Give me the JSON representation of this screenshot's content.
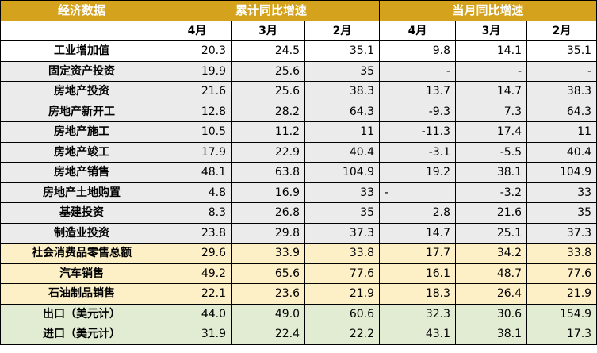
{
  "table": {
    "header": {
      "title": "经济数据",
      "group_cumulative": "累计同比增速",
      "group_monthly": "当月同比增速",
      "months": [
        "4月",
        "3月",
        "2月",
        "4月",
        "3月",
        "2月"
      ]
    },
    "rows": [
      {
        "label": "工业增加值",
        "values": [
          "20.3",
          "24.5",
          "35.1",
          "9.8",
          "14.1",
          "35.1"
        ],
        "group": "white"
      },
      {
        "label": "固定资产投资",
        "values": [
          "19.9",
          "25.6",
          "35",
          "-",
          "-",
          "-"
        ],
        "group": "gray"
      },
      {
        "label": "房地产投资",
        "values": [
          "21.6",
          "25.6",
          "38.3",
          "13.7",
          "14.7",
          "38.3"
        ],
        "group": "gray"
      },
      {
        "label": "房地产新开工",
        "values": [
          "12.8",
          "28.2",
          "64.3",
          "-9.3",
          "7.3",
          "64.3"
        ],
        "group": "gray"
      },
      {
        "label": "房地产施工",
        "values": [
          "10.5",
          "11.2",
          "11",
          "-11.3",
          "17.4",
          "11"
        ],
        "group": "gray"
      },
      {
        "label": "房地产竣工",
        "values": [
          "17.9",
          "22.9",
          "40.4",
          "-3.1",
          "-5.5",
          "40.4"
        ],
        "group": "gray"
      },
      {
        "label": "房地产销售",
        "values": [
          "48.1",
          "63.8",
          "104.9",
          "19.2",
          "38.1",
          "104.9"
        ],
        "group": "gray"
      },
      {
        "label": "房地产土地购置",
        "values": [
          "4.8",
          "16.9",
          "33",
          "-",
          "-3.2",
          "33"
        ],
        "group": "gray"
      },
      {
        "label": "基建投资",
        "values": [
          "8.3",
          "26.8",
          "35",
          "2.8",
          "21.6",
          "35"
        ],
        "group": "gray"
      },
      {
        "label": "制造业投资",
        "values": [
          "23.8",
          "29.8",
          "37.3",
          "14.7",
          "25.1",
          "37.3"
        ],
        "group": "gray"
      },
      {
        "label": "社会消费品零售总额",
        "values": [
          "29.6",
          "33.9",
          "33.8",
          "17.7",
          "34.2",
          "33.8"
        ],
        "group": "yellow"
      },
      {
        "label": "汽车销售",
        "values": [
          "49.2",
          "65.6",
          "77.6",
          "16.1",
          "48.7",
          "77.6"
        ],
        "group": "yellow"
      },
      {
        "label": "石油制品销售",
        "values": [
          "22.1",
          "23.6",
          "21.9",
          "18.3",
          "26.4",
          "21.9"
        ],
        "group": "yellow"
      },
      {
        "label": "出口（美元计）",
        "values": [
          "44.0",
          "49.0",
          "60.6",
          "32.3",
          "30.6",
          "154.9"
        ],
        "group": "green"
      },
      {
        "label": "进口（美元计）",
        "values": [
          "31.9",
          "22.4",
          "22.2",
          "43.1",
          "38.1",
          "17.3"
        ],
        "group": "green"
      }
    ],
    "colors": {
      "header_bg": "#d4a21c",
      "header_text": "#ffffff",
      "gray": "#ebebeb",
      "yellow": "#fdf0c6",
      "green": "#e2ecd3"
    }
  }
}
